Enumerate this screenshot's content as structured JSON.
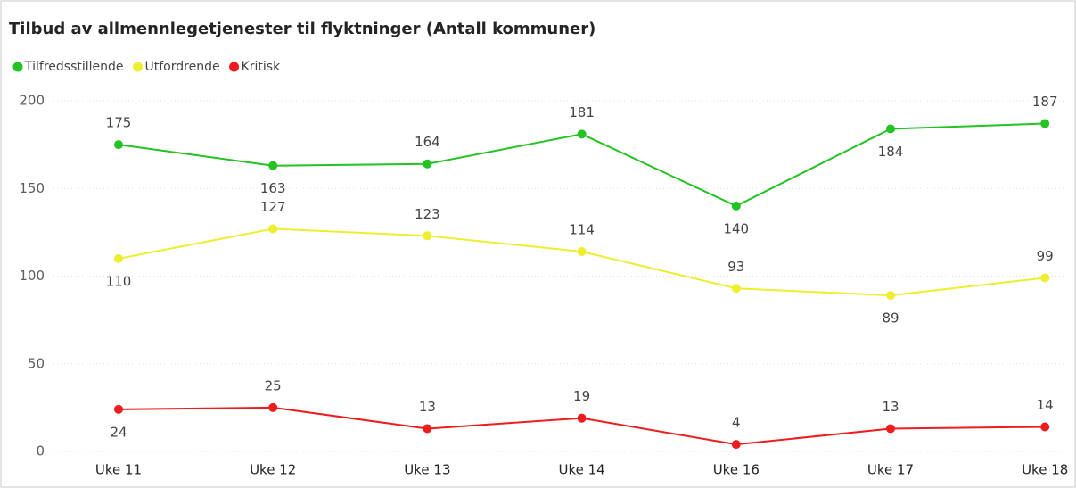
{
  "chart_data": {
    "type": "line",
    "title": "Tilbud av allmennlegetjenester til flyktninger (Antall kommuner)",
    "categories": [
      "Uke 11",
      "Uke 12",
      "Uke 13",
      "Uke 14",
      "Uke 16",
      "Uke 17",
      "Uke 18"
    ],
    "series": [
      {
        "name": "Tilfredsstillende",
        "color": "#22c322",
        "values": [
          175,
          163,
          164,
          181,
          140,
          184,
          187
        ]
      },
      {
        "name": "Utfordrende",
        "color": "#eeee30",
        "values": [
          110,
          127,
          123,
          114,
          93,
          89,
          99
        ]
      },
      {
        "name": "Kritisk",
        "color": "#ee1c1c",
        "values": [
          24,
          25,
          13,
          19,
          4,
          13,
          14
        ]
      }
    ],
    "ylim": [
      0,
      200
    ],
    "yticks": [
      0,
      50,
      100,
      150,
      200
    ],
    "grid": true,
    "legend": "top-left"
  }
}
